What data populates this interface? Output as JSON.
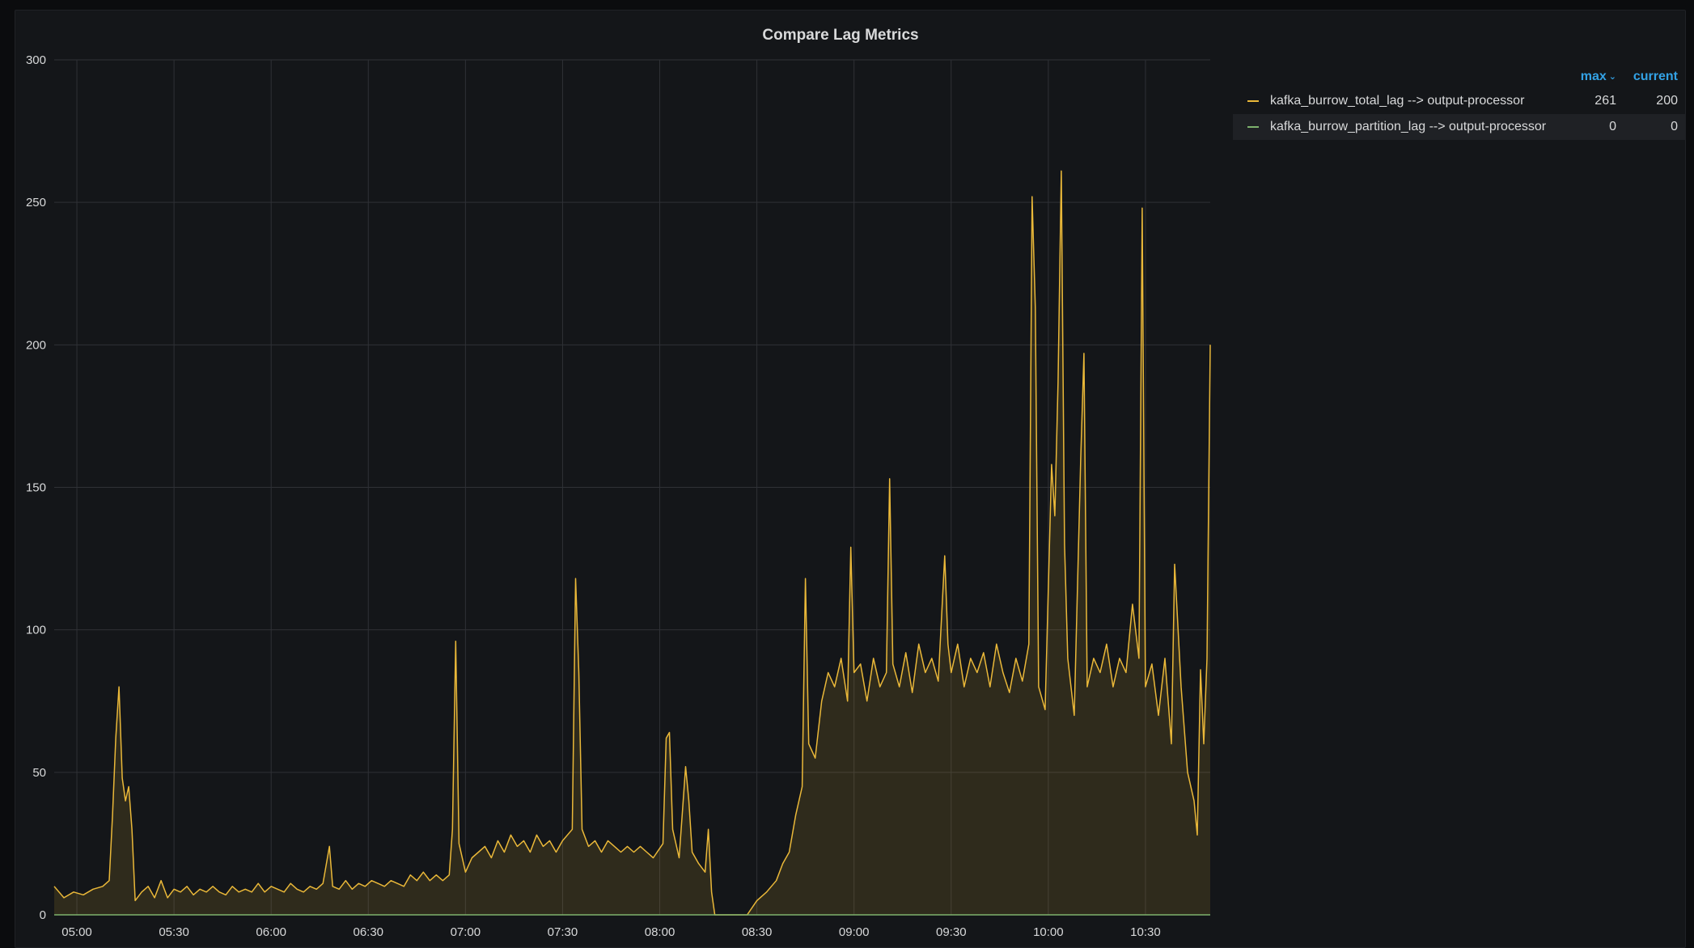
{
  "panel": {
    "title": "Compare Lag Metrics"
  },
  "legend": {
    "columns": {
      "max": "max",
      "current": "current"
    },
    "sort_icon": "chevron-down-icon",
    "rows": [
      {
        "name": "kafka_burrow_total_lag --> output-processor",
        "max": "261",
        "current": "200",
        "color": "#eab839"
      },
      {
        "name": "kafka_burrow_partition_lag --> output-processor",
        "max": "0",
        "current": "0",
        "color": "#7eb26d"
      }
    ]
  },
  "colors": {
    "background": "#141619",
    "grid": "#2f3136",
    "axis_text": "#d8d9da",
    "accent_link": "#33a2e5"
  },
  "chart_data": {
    "type": "area",
    "title": "Compare Lag Metrics",
    "xlabel": "",
    "ylabel": "",
    "ylim": [
      0,
      300
    ],
    "yticks": [
      "0",
      "50",
      "100",
      "150",
      "200",
      "250",
      "300"
    ],
    "xticks": [
      "05:00",
      "05:30",
      "06:00",
      "06:30",
      "07:00",
      "07:30",
      "08:00",
      "08:30",
      "09:00",
      "09:30",
      "10:00",
      "10:30"
    ],
    "grid": true,
    "legend_position": "right",
    "x_start": "04:53",
    "x_end": "10:50",
    "series": [
      {
        "name": "kafka_burrow_total_lag --> output-processor",
        "color": "#eab839",
        "fill": true,
        "points": [
          [
            "04:53",
            10
          ],
          [
            "04:56",
            6
          ],
          [
            "04:59",
            8
          ],
          [
            "05:02",
            7
          ],
          [
            "05:05",
            9
          ],
          [
            "05:08",
            10
          ],
          [
            "05:10",
            12
          ],
          [
            "05:11",
            35
          ],
          [
            "05:12",
            62
          ],
          [
            "05:13",
            80
          ],
          [
            "05:14",
            48
          ],
          [
            "05:15",
            40
          ],
          [
            "05:16",
            45
          ],
          [
            "05:17",
            30
          ],
          [
            "05:18",
            5
          ],
          [
            "05:20",
            8
          ],
          [
            "05:22",
            10
          ],
          [
            "05:24",
            6
          ],
          [
            "05:26",
            12
          ],
          [
            "05:28",
            6
          ],
          [
            "05:30",
            9
          ],
          [
            "05:32",
            8
          ],
          [
            "05:34",
            10
          ],
          [
            "05:36",
            7
          ],
          [
            "05:38",
            9
          ],
          [
            "05:40",
            8
          ],
          [
            "05:42",
            10
          ],
          [
            "05:44",
            8
          ],
          [
            "05:46",
            7
          ],
          [
            "05:48",
            10
          ],
          [
            "05:50",
            8
          ],
          [
            "05:52",
            9
          ],
          [
            "05:54",
            8
          ],
          [
            "05:56",
            11
          ],
          [
            "05:58",
            8
          ],
          [
            "06:00",
            10
          ],
          [
            "06:02",
            9
          ],
          [
            "06:04",
            8
          ],
          [
            "06:06",
            11
          ],
          [
            "06:08",
            9
          ],
          [
            "06:10",
            8
          ],
          [
            "06:12",
            10
          ],
          [
            "06:14",
            9
          ],
          [
            "06:16",
            11
          ],
          [
            "06:18",
            24
          ],
          [
            "06:19",
            10
          ],
          [
            "06:21",
            9
          ],
          [
            "06:23",
            12
          ],
          [
            "06:25",
            9
          ],
          [
            "06:27",
            11
          ],
          [
            "06:29",
            10
          ],
          [
            "06:31",
            12
          ],
          [
            "06:33",
            11
          ],
          [
            "06:35",
            10
          ],
          [
            "06:37",
            12
          ],
          [
            "06:39",
            11
          ],
          [
            "06:41",
            10
          ],
          [
            "06:43",
            14
          ],
          [
            "06:45",
            12
          ],
          [
            "06:47",
            15
          ],
          [
            "06:49",
            12
          ],
          [
            "06:51",
            14
          ],
          [
            "06:53",
            12
          ],
          [
            "06:55",
            14
          ],
          [
            "06:56",
            30
          ],
          [
            "06:57",
            96
          ],
          [
            "06:58",
            25
          ],
          [
            "07:00",
            15
          ],
          [
            "07:02",
            20
          ],
          [
            "07:04",
            22
          ],
          [
            "07:06",
            24
          ],
          [
            "07:08",
            20
          ],
          [
            "07:10",
            26
          ],
          [
            "07:12",
            22
          ],
          [
            "07:14",
            28
          ],
          [
            "07:16",
            24
          ],
          [
            "07:18",
            26
          ],
          [
            "07:20",
            22
          ],
          [
            "07:22",
            28
          ],
          [
            "07:24",
            24
          ],
          [
            "07:26",
            26
          ],
          [
            "07:28",
            22
          ],
          [
            "07:30",
            26
          ],
          [
            "07:33",
            30
          ],
          [
            "07:34",
            118
          ],
          [
            "07:35",
            85
          ],
          [
            "07:36",
            30
          ],
          [
            "07:38",
            24
          ],
          [
            "07:40",
            26
          ],
          [
            "07:42",
            22
          ],
          [
            "07:44",
            26
          ],
          [
            "07:46",
            24
          ],
          [
            "07:48",
            22
          ],
          [
            "07:50",
            24
          ],
          [
            "07:52",
            22
          ],
          [
            "07:54",
            24
          ],
          [
            "07:56",
            22
          ],
          [
            "07:58",
            20
          ],
          [
            "08:01",
            25
          ],
          [
            "08:02",
            62
          ],
          [
            "08:03",
            64
          ],
          [
            "08:04",
            30
          ],
          [
            "08:06",
            20
          ],
          [
            "08:08",
            52
          ],
          [
            "08:09",
            40
          ],
          [
            "08:10",
            22
          ],
          [
            "08:12",
            18
          ],
          [
            "08:14",
            15
          ],
          [
            "08:15",
            30
          ],
          [
            "08:16",
            8
          ],
          [
            "08:17",
            0
          ],
          [
            "08:20",
            0
          ],
          [
            "08:24",
            0
          ],
          [
            "08:27",
            0
          ],
          [
            "08:30",
            5
          ],
          [
            "08:33",
            8
          ],
          [
            "08:36",
            12
          ],
          [
            "08:38",
            18
          ],
          [
            "08:40",
            22
          ],
          [
            "08:42",
            35
          ],
          [
            "08:44",
            45
          ],
          [
            "08:45",
            118
          ],
          [
            "08:46",
            60
          ],
          [
            "08:48",
            55
          ],
          [
            "08:50",
            75
          ],
          [
            "08:52",
            85
          ],
          [
            "08:54",
            80
          ],
          [
            "08:56",
            90
          ],
          [
            "08:58",
            75
          ],
          [
            "08:59",
            129
          ],
          [
            "09:00",
            85
          ],
          [
            "09:02",
            88
          ],
          [
            "09:04",
            75
          ],
          [
            "09:06",
            90
          ],
          [
            "09:08",
            80
          ],
          [
            "09:10",
            85
          ],
          [
            "09:11",
            153
          ],
          [
            "09:12",
            88
          ],
          [
            "09:14",
            80
          ],
          [
            "09:16",
            92
          ],
          [
            "09:18",
            78
          ],
          [
            "09:20",
            95
          ],
          [
            "09:22",
            85
          ],
          [
            "09:24",
            90
          ],
          [
            "09:26",
            82
          ],
          [
            "09:28",
            126
          ],
          [
            "09:29",
            95
          ],
          [
            "09:30",
            85
          ],
          [
            "09:32",
            95
          ],
          [
            "09:34",
            80
          ],
          [
            "09:36",
            90
          ],
          [
            "09:38",
            85
          ],
          [
            "09:40",
            92
          ],
          [
            "09:42",
            80
          ],
          [
            "09:44",
            95
          ],
          [
            "09:46",
            85
          ],
          [
            "09:48",
            78
          ],
          [
            "09:50",
            90
          ],
          [
            "09:52",
            82
          ],
          [
            "09:54",
            95
          ],
          [
            "09:55",
            252
          ],
          [
            "09:56",
            213
          ],
          [
            "09:57",
            80
          ],
          [
            "09:59",
            72
          ],
          [
            "10:01",
            158
          ],
          [
            "10:02",
            140
          ],
          [
            "10:03",
            187
          ],
          [
            "10:04",
            261
          ],
          [
            "10:05",
            130
          ],
          [
            "10:06",
            90
          ],
          [
            "10:08",
            70
          ],
          [
            "10:10",
            160
          ],
          [
            "10:11",
            197
          ],
          [
            "10:12",
            80
          ],
          [
            "10:14",
            90
          ],
          [
            "10:16",
            85
          ],
          [
            "10:18",
            95
          ],
          [
            "10:20",
            80
          ],
          [
            "10:22",
            90
          ],
          [
            "10:24",
            85
          ],
          [
            "10:26",
            109
          ],
          [
            "10:28",
            90
          ],
          [
            "10:29",
            248
          ],
          [
            "10:30",
            80
          ],
          [
            "10:32",
            88
          ],
          [
            "10:34",
            70
          ],
          [
            "10:36",
            90
          ],
          [
            "10:38",
            60
          ],
          [
            "10:39",
            123
          ],
          [
            "10:41",
            80
          ],
          [
            "10:43",
            50
          ],
          [
            "10:45",
            40
          ],
          [
            "10:46",
            28
          ],
          [
            "10:47",
            86
          ],
          [
            "10:48",
            60
          ],
          [
            "10:49",
            90
          ],
          [
            "10:50",
            200
          ]
        ]
      },
      {
        "name": "kafka_burrow_partition_lag --> output-processor",
        "color": "#7eb26d",
        "fill": false,
        "points": [
          [
            "04:53",
            0
          ],
          [
            "10:50",
            0
          ]
        ]
      }
    ]
  }
}
